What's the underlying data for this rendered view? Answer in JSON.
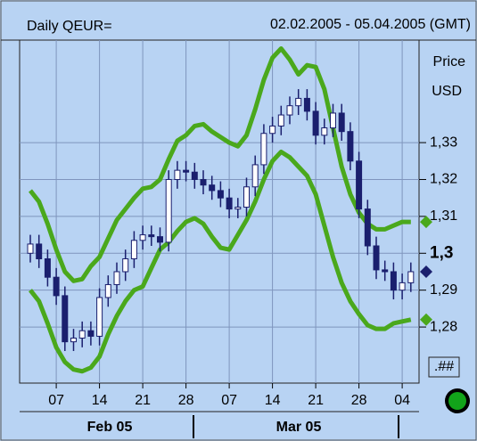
{
  "chart_data": {
    "type": "candlestick",
    "title": "Daily QEUR=",
    "subtitle": "02.02.2005 - 05.04.2005 (GMT)",
    "ylabel": "Price",
    "yunit": "USD",
    "precision_button": ".##",
    "month_labels": [
      "Feb 05",
      "Mar 05"
    ],
    "categories": [
      null,
      null,
      null,
      "07",
      null,
      null,
      null,
      null,
      "14",
      null,
      null,
      null,
      null,
      "21",
      null,
      null,
      null,
      null,
      "28",
      null,
      null,
      null,
      null,
      "07",
      null,
      null,
      null,
      null,
      "14",
      null,
      null,
      null,
      null,
      "21",
      null,
      null,
      null,
      null,
      "28",
      null,
      null,
      null,
      null,
      "04",
      null
    ],
    "open": [
      1.3,
      1.3025,
      1.2985,
      1.2935,
      1.2885,
      1.276,
      1.277,
      1.279,
      1.2775,
      1.288,
      1.2915,
      1.295,
      1.2985,
      1.3035,
      1.305,
      1.3045,
      1.303,
      1.32,
      1.3225,
      1.322,
      1.32,
      1.3185,
      1.317,
      1.315,
      1.312,
      1.3125,
      1.318,
      1.324,
      1.3325,
      1.3345,
      1.3375,
      1.34,
      1.342,
      1.3385,
      1.332,
      1.334,
      1.338,
      1.333,
      1.325,
      1.312,
      1.302,
      1.2955,
      1.295,
      1.29,
      1.292
    ],
    "high": [
      1.305,
      1.305,
      1.301,
      1.296,
      1.291,
      1.2795,
      1.2815,
      1.2815,
      1.2905,
      1.294,
      1.2975,
      1.301,
      1.306,
      1.3075,
      1.3075,
      1.307,
      1.3225,
      1.325,
      1.325,
      1.3245,
      1.3225,
      1.321,
      1.3195,
      1.3175,
      1.315,
      1.3205,
      1.3265,
      1.335,
      1.337,
      1.34,
      1.3425,
      1.3445,
      1.3445,
      1.341,
      1.3365,
      1.3405,
      1.3405,
      1.3355,
      1.3275,
      1.3145,
      1.3045,
      1.298,
      1.2975,
      1.2945,
      1.2975
    ],
    "low": [
      1.2975,
      1.296,
      1.291,
      1.286,
      1.2735,
      1.2735,
      1.2745,
      1.275,
      1.275,
      1.2855,
      1.289,
      1.2925,
      1.296,
      1.301,
      1.302,
      1.3005,
      1.3005,
      1.3175,
      1.3195,
      1.3175,
      1.316,
      1.3145,
      1.3125,
      1.3095,
      1.3095,
      1.31,
      1.3155,
      1.3215,
      1.33,
      1.332,
      1.335,
      1.3375,
      1.336,
      1.3295,
      1.3295,
      1.3315,
      1.3305,
      1.3225,
      1.3095,
      1.2995,
      1.293,
      1.2925,
      1.2875,
      1.2875,
      1.2895
    ],
    "close": [
      1.3025,
      1.2985,
      1.2935,
      1.2885,
      1.276,
      1.277,
      1.279,
      1.2775,
      1.288,
      1.2915,
      1.295,
      1.2985,
      1.3035,
      1.305,
      1.3045,
      1.303,
      1.32,
      1.3225,
      1.322,
      1.32,
      1.3185,
      1.317,
      1.315,
      1.312,
      1.3125,
      1.318,
      1.324,
      1.3325,
      1.3345,
      1.3375,
      1.34,
      1.342,
      1.3385,
      1.332,
      1.334,
      1.338,
      1.333,
      1.325,
      1.312,
      1.302,
      1.2955,
      1.295,
      1.29,
      1.292,
      1.295
    ],
    "up_color": "#ffffff",
    "down_color": "#1a1f6e",
    "bands": {
      "color": "#4aa81c",
      "upper": [
        1.317,
        1.314,
        1.308,
        1.301,
        1.295,
        1.2925,
        1.293,
        1.2965,
        1.299,
        1.304,
        1.309,
        1.312,
        1.315,
        1.3175,
        1.318,
        1.32,
        1.3255,
        1.3305,
        1.332,
        1.3345,
        1.335,
        1.333,
        1.3315,
        1.33,
        1.329,
        1.332,
        1.339,
        1.347,
        1.353,
        1.3555,
        1.3525,
        1.3485,
        1.351,
        1.3505,
        1.3445,
        1.334,
        1.3235,
        1.316,
        1.311,
        1.308,
        1.3065,
        1.3065,
        1.3075,
        1.3085,
        1.3085
      ],
      "lower": [
        1.29,
        1.287,
        1.281,
        1.2745,
        1.2705,
        1.2685,
        1.268,
        1.269,
        1.272,
        1.278,
        1.283,
        1.287,
        1.29,
        1.291,
        1.296,
        1.301,
        1.303,
        1.306,
        1.3085,
        1.3095,
        1.308,
        1.3045,
        1.3015,
        1.301,
        1.305,
        1.309,
        1.314,
        1.32,
        1.325,
        1.3275,
        1.326,
        1.3235,
        1.321,
        1.316,
        1.3075,
        1.299,
        1.292,
        1.287,
        1.2835,
        1.2805,
        1.2795,
        1.2795,
        1.281,
        1.2815,
        1.282
      ]
    },
    "ylim": [
      1.2648,
      1.3578
    ],
    "yticks": [
      {
        "value": 1.33,
        "label": "1,33"
      },
      {
        "value": 1.32,
        "label": "1,32"
      },
      {
        "value": 1.31,
        "label": "1,31"
      },
      {
        "value": 1.3,
        "label": "1,3"
      },
      {
        "value": 1.29,
        "label": "1,29"
      },
      {
        "value": 1.28,
        "label": "1,28"
      }
    ],
    "highlight_tick": 3,
    "grid": true
  }
}
